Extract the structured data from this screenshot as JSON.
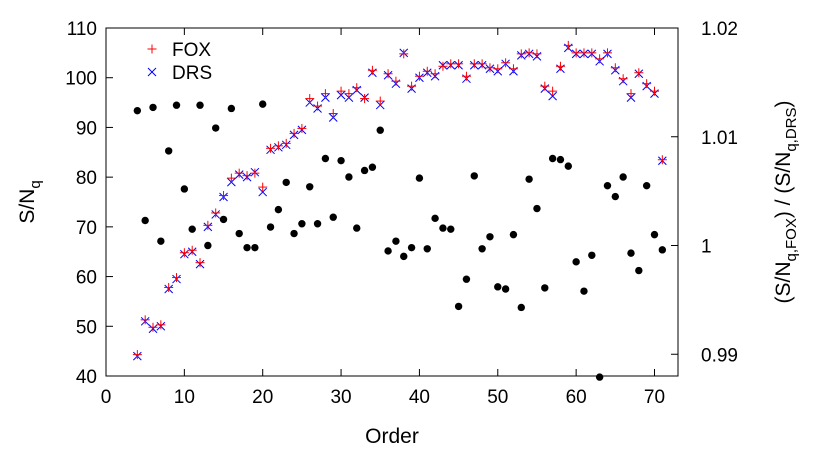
{
  "chart_data": {
    "type": "scatter",
    "xlabel": "Order",
    "ylabel": "S/N",
    "ylabel_subscript": "q",
    "y2label": "(S/N_{q,FOX}) / (S/N_{q,DRS})",
    "xlim": [
      0,
      73
    ],
    "ylim": [
      40,
      110
    ],
    "y2lim": [
      0.988,
      1.02
    ],
    "xticks": [
      0,
      10,
      20,
      30,
      40,
      50,
      60,
      70
    ],
    "yticks": [
      40,
      50,
      60,
      70,
      80,
      90,
      100,
      110
    ],
    "y2ticks": [
      0.99,
      1,
      1.01,
      1.02
    ],
    "y2tick_labels": [
      "0.99",
      "1",
      "1.01",
      "1.02"
    ],
    "grid": false,
    "legend_position": "top-left",
    "colors": {
      "fox": "#ff0000",
      "drs": "#0000ff",
      "ratio": "#000000"
    },
    "series": [
      {
        "name": "FOX",
        "axis": "left",
        "marker": "plus",
        "x": [
          4,
          5,
          6,
          7,
          8,
          9,
          10,
          11,
          12,
          13,
          14,
          15,
          16,
          17,
          18,
          19,
          20,
          21,
          22,
          23,
          24,
          25,
          26,
          27,
          28,
          29,
          30,
          31,
          32,
          33,
          34,
          35,
          36,
          37,
          38,
          39,
          40,
          41,
          42,
          43,
          44,
          45,
          46,
          47,
          48,
          49,
          50,
          51,
          52,
          53,
          54,
          55,
          56,
          57,
          58,
          59,
          60,
          61,
          62,
          63,
          64,
          65,
          66,
          67,
          68,
          69,
          70,
          71
        ],
        "y": [
          44.3,
          51.3,
          49.8,
          50.3,
          57.8,
          59.8,
          64.8,
          65.3,
          62.8,
          70.3,
          72.8,
          76.3,
          79.8,
          80.8,
          80.3,
          80.8,
          78.0,
          85.8,
          86.3,
          86.8,
          88.8,
          89.8,
          95.8,
          94.3,
          96.8,
          92.8,
          97.3,
          96.8,
          98.0,
          95.8,
          101.5,
          95.3,
          100.8,
          99.3,
          104.8,
          98.3,
          100.3,
          101.3,
          100.8,
          102.3,
          102.8,
          102.8,
          100.3,
          102.8,
          102.8,
          102.0,
          101.8,
          103.0,
          101.8,
          104.8,
          105.0,
          104.8,
          98.3,
          97.3,
          102.3,
          106.5,
          105.0,
          105.0,
          105.0,
          103.8,
          105.0,
          102.0,
          99.8,
          96.8,
          101.0,
          98.8,
          97.3,
          83.5
        ]
      },
      {
        "name": "DRS",
        "axis": "left",
        "marker": "x",
        "x": [
          4,
          5,
          6,
          7,
          8,
          9,
          10,
          11,
          12,
          13,
          14,
          15,
          16,
          17,
          18,
          19,
          20,
          21,
          22,
          23,
          24,
          25,
          26,
          27,
          28,
          29,
          30,
          31,
          32,
          33,
          34,
          35,
          36,
          37,
          38,
          39,
          40,
          41,
          42,
          43,
          44,
          45,
          46,
          47,
          48,
          49,
          50,
          51,
          52,
          53,
          54,
          55,
          56,
          57,
          58,
          59,
          60,
          61,
          62,
          63,
          64,
          65,
          66,
          67,
          68,
          69,
          70,
          71
        ],
        "y": [
          44.0,
          51.0,
          49.5,
          50.0,
          57.5,
          59.5,
          64.5,
          65.0,
          62.5,
          70.0,
          72.5,
          76.0,
          79.0,
          80.5,
          80.0,
          81.0,
          77.0,
          85.5,
          86.0,
          86.5,
          88.5,
          89.5,
          95.0,
          93.8,
          96.0,
          92.0,
          96.5,
          96.0,
          97.5,
          96.0,
          101.0,
          94.5,
          100.5,
          98.8,
          105.0,
          97.8,
          100.0,
          101.0,
          100.3,
          102.5,
          102.5,
          102.5,
          99.8,
          102.5,
          102.5,
          101.8,
          101.3,
          102.8,
          101.3,
          104.5,
          104.8,
          104.3,
          97.8,
          96.3,
          101.8,
          106.0,
          104.8,
          104.8,
          104.8,
          103.3,
          104.8,
          101.5,
          99.3,
          96.0,
          100.8,
          98.3,
          96.8,
          83.3
        ]
      },
      {
        "name": "",
        "axis": "right",
        "marker": "dot",
        "x": [
          4,
          5,
          6,
          7,
          8,
          9,
          10,
          11,
          12,
          13,
          14,
          15,
          16,
          17,
          18,
          19,
          20,
          21,
          22,
          23,
          24,
          25,
          26,
          27,
          28,
          29,
          30,
          31,
          32,
          33,
          34,
          35,
          36,
          37,
          38,
          39,
          40,
          41,
          42,
          43,
          44,
          45,
          46,
          47,
          48,
          49,
          50,
          51,
          52,
          53,
          54,
          55,
          56,
          57,
          58,
          59,
          60,
          61,
          62,
          63,
          64,
          65,
          66,
          67,
          68,
          69,
          70,
          71
        ],
        "y": [
          1.0124,
          1.0023,
          1.0127,
          1.0004,
          1.0087,
          1.0129,
          1.0052,
          1.0015,
          1.0129,
          1.0,
          1.0108,
          1.0024,
          1.0126,
          1.0011,
          0.9998,
          0.9998,
          1.013,
          1.0017,
          1.0033,
          1.0058,
          1.0011,
          1.002,
          1.0054,
          1.002,
          1.008,
          1.0026,
          1.0078,
          1.0063,
          1.0016,
          1.0069,
          1.0072,
          1.0106,
          0.9995,
          1.0004,
          0.999,
          0.9998,
          1.0062,
          0.9997,
          1.0025,
          1.0016,
          1.0015,
          0.9944,
          0.9969,
          1.0064,
          0.9997,
          1.0008,
          0.9962,
          0.996,
          1.001,
          0.9943,
          1.0061,
          1.0034,
          0.9961,
          1.008,
          1.0079,
          1.0073,
          0.9985,
          0.9958,
          0.9991,
          0.9879,
          1.0055,
          1.0045,
          1.0063,
          0.9993,
          0.9977,
          1.0055,
          1.001,
          0.9996
        ]
      }
    ]
  }
}
